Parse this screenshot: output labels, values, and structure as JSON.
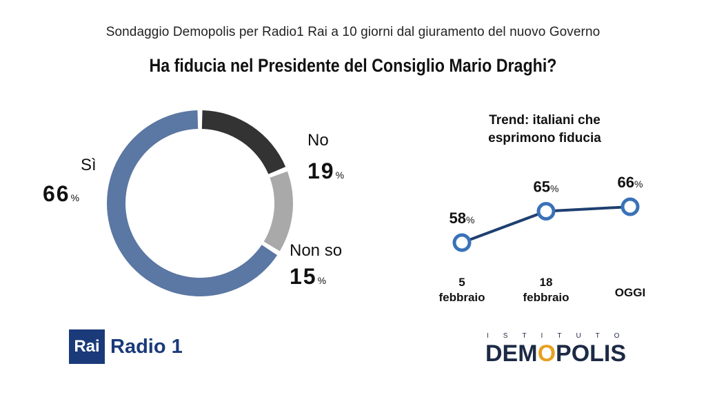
{
  "header": {
    "subtitle": "Sondaggio Demopolis per Radio1 Rai a 10 giorni dal giuramento del nuovo Governo",
    "title": "Ha fiducia nel Presidente del Consiglio Mario Draghi?"
  },
  "chart_data": [
    {
      "type": "pie",
      "donut": true,
      "categories": [
        "Sì",
        "No",
        "Non so"
      ],
      "values": [
        66,
        19,
        15
      ],
      "unit": "%",
      "colors": [
        "#5b77a3",
        "#333333",
        "#a9a9a9"
      ]
    },
    {
      "type": "line",
      "title_lines": [
        "Trend: italiani che",
        "esprimono fiducia"
      ],
      "categories": [
        [
          "5",
          "febbraio"
        ],
        [
          "18",
          "febbraio"
        ],
        [
          "OGGI"
        ]
      ],
      "values": [
        58,
        65,
        66
      ],
      "unit": "%",
      "line_color": "#1f3f70",
      "marker_color": "#3a72b8"
    }
  ],
  "logos": {
    "rai_box": "Rai",
    "rai_radio": "Radio 1",
    "demopolis_top": "ISTITUTO",
    "demopolis_main_a": "DEM",
    "demopolis_main_b": "O",
    "demopolis_main_c": "POLIS"
  }
}
